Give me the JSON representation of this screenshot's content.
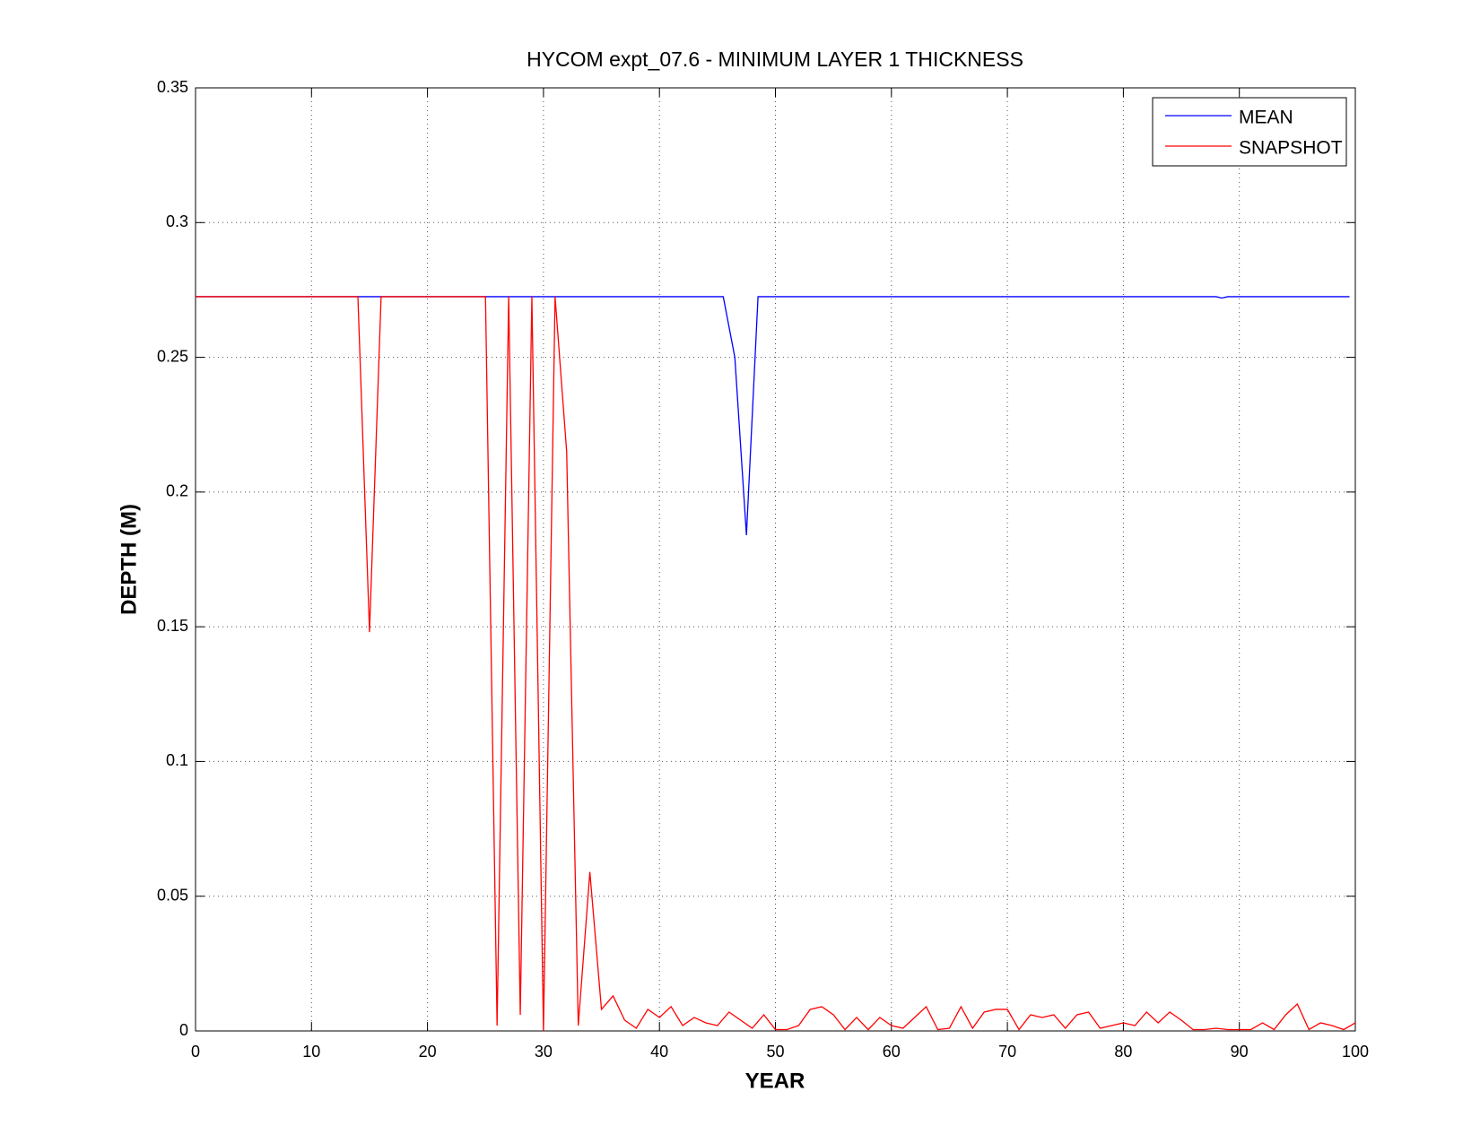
{
  "chart_data": {
    "type": "line",
    "title": "HYCOM expt_07.6 - MINIMUM LAYER 1 THICKNESS",
    "x_label": "YEAR",
    "y_label": "DEPTH (M)",
    "xlim": [
      0,
      100
    ],
    "xticks": [
      0,
      10,
      20,
      30,
      40,
      50,
      60,
      70,
      80,
      90,
      100
    ],
    "ylim": [
      0,
      0.35
    ],
    "yticks": [
      0,
      0.05,
      0.1,
      0.15,
      0.2,
      0.25,
      0.3,
      0.35
    ],
    "grid": true,
    "legend": "northeast",
    "series": [
      {
        "name": "MEAN",
        "color": "#0000ff",
        "x": [
          0,
          45.5,
          46.5,
          47.5,
          48.5,
          88,
          88.5,
          89,
          99.5
        ],
        "values": [
          0.2725,
          0.2725,
          0.25,
          0.184,
          0.2725,
          0.2725,
          0.272,
          0.2725,
          0.2725
        ]
      },
      {
        "name": "SNAPSHOT",
        "color": "#ff0000",
        "x": [
          0,
          1,
          2,
          3,
          4,
          5,
          6,
          7,
          8,
          9,
          10,
          11,
          12,
          13,
          14,
          15,
          16,
          17,
          18,
          19,
          20,
          21,
          22,
          23,
          24,
          25,
          26,
          27,
          28,
          29,
          30,
          31,
          32,
          33,
          34,
          35,
          36,
          37,
          38,
          39,
          40,
          41,
          42,
          43,
          44,
          45,
          46,
          47,
          48,
          49,
          50,
          51,
          52,
          53,
          54,
          55,
          56,
          57,
          58,
          59,
          60,
          61,
          62,
          63,
          64,
          65,
          66,
          67,
          68,
          69,
          70,
          71,
          72,
          73,
          74,
          75,
          76,
          77,
          78,
          79,
          80,
          81,
          82,
          83,
          84,
          85,
          86,
          87,
          88,
          89,
          90,
          91,
          92,
          93,
          94,
          95,
          96,
          97,
          98,
          99,
          100
        ],
        "values": [
          0.2725,
          0.2725,
          0.2725,
          0.2725,
          0.2725,
          0.2725,
          0.2725,
          0.2725,
          0.2725,
          0.2725,
          0.2725,
          0.2725,
          0.2725,
          0.2725,
          0.2725,
          0.148,
          0.2725,
          0.2725,
          0.2725,
          0.2725,
          0.2725,
          0.2725,
          0.2725,
          0.2725,
          0.2725,
          0.2725,
          0.002,
          0.2725,
          0.006,
          0.2725,
          0.0,
          0.2725,
          0.215,
          0.002,
          0.059,
          0.008,
          0.013,
          0.004,
          0.001,
          0.008,
          0.005,
          0.009,
          0.002,
          0.005,
          0.003,
          0.002,
          0.007,
          0.004,
          0.001,
          0.006,
          0.0005,
          0.0005,
          0.002,
          0.008,
          0.009,
          0.006,
          0.0005,
          0.005,
          0.0005,
          0.005,
          0.002,
          0.001,
          0.005,
          0.009,
          0.0005,
          0.001,
          0.009,
          0.001,
          0.007,
          0.008,
          0.008,
          0.0005,
          0.006,
          0.005,
          0.006,
          0.001,
          0.006,
          0.007,
          0.001,
          0.002,
          0.003,
          0.002,
          0.007,
          0.003,
          0.007,
          0.004,
          0.0005,
          0.0005,
          0.001,
          0.0005,
          0.0005,
          0.0005,
          0.003,
          0.0005,
          0.006,
          0.01,
          0.0005,
          0.003,
          0.002,
          0.0005,
          0.003
        ]
      }
    ]
  }
}
